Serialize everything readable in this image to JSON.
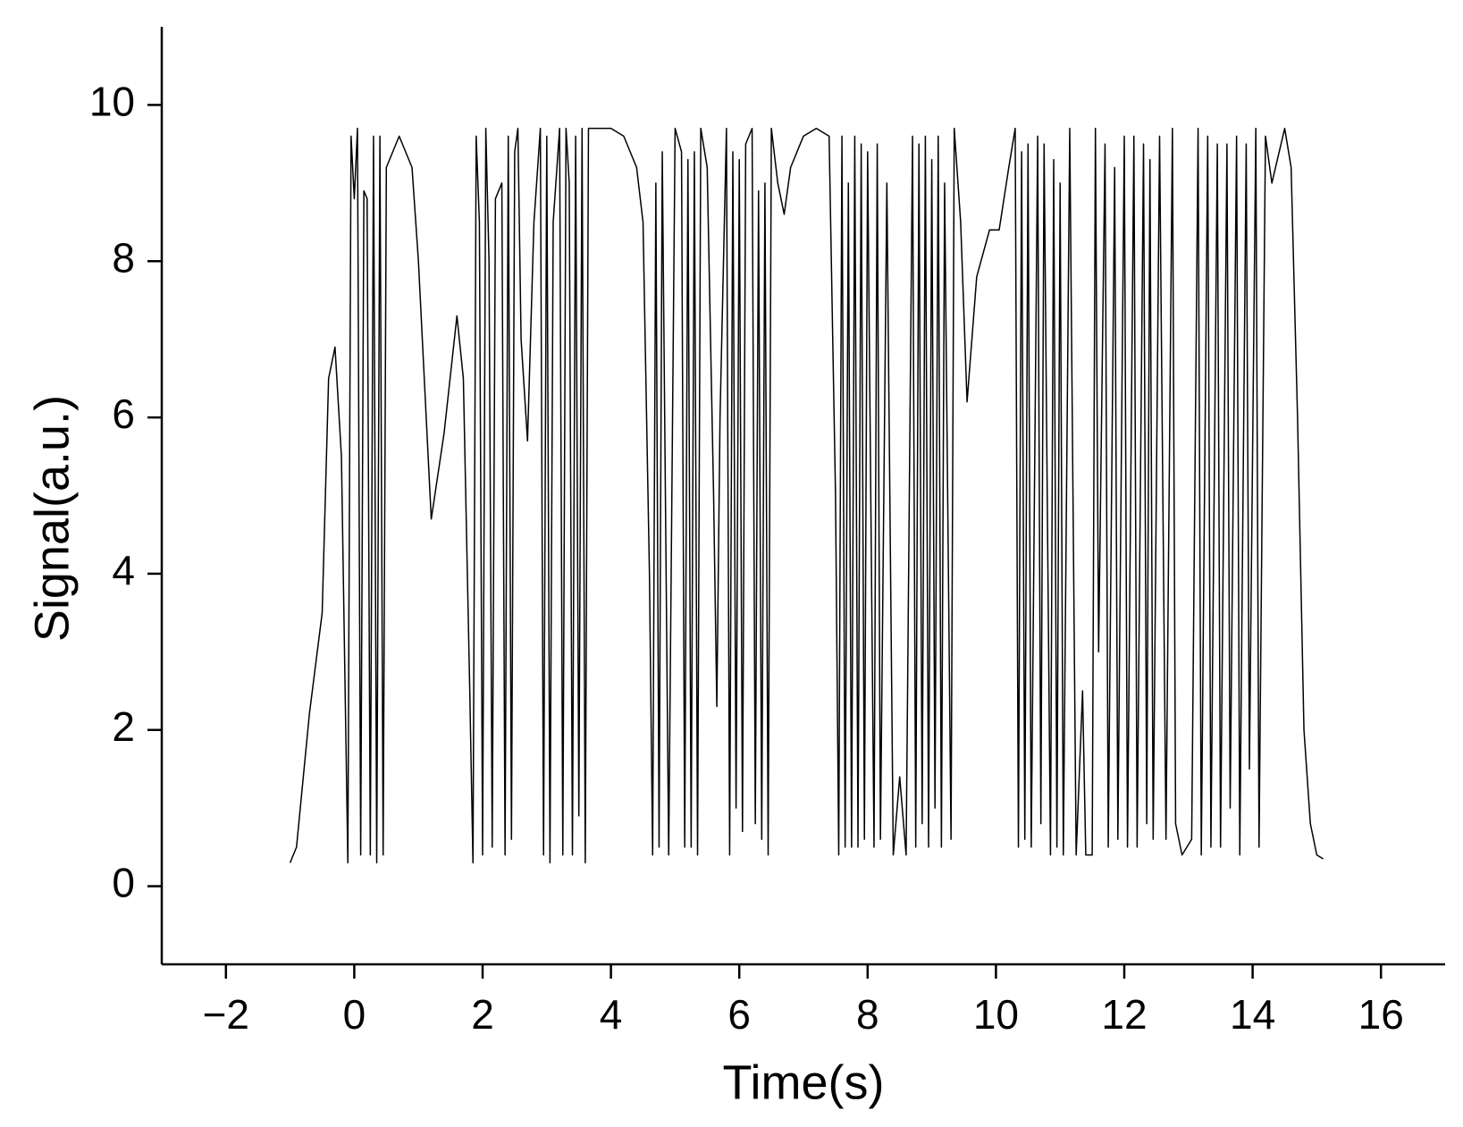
{
  "chart_data": {
    "type": "line",
    "xlabel": "Time(s)",
    "ylabel": "Signal(a.u.)",
    "color": "#000000",
    "xlim": [
      -3,
      17
    ],
    "ylim": [
      -1,
      11
    ],
    "xticks": [
      {
        "value": -2,
        "label": "−2"
      },
      0,
      2,
      4,
      6,
      8,
      10,
      12,
      14,
      16
    ],
    "yticks": [
      0,
      2,
      4,
      6,
      8,
      10
    ],
    "x": [
      -1.0,
      -0.9,
      -0.7,
      -0.5,
      -0.4,
      -0.3,
      -0.2,
      -0.1,
      -0.05,
      0.0,
      0.05,
      0.1,
      0.15,
      0.2,
      0.25,
      0.3,
      0.35,
      0.4,
      0.45,
      0.5,
      0.7,
      0.9,
      1.0,
      1.2,
      1.4,
      1.6,
      1.7,
      1.8,
      1.85,
      1.9,
      1.95,
      2.0,
      2.05,
      2.1,
      2.15,
      2.2,
      2.3,
      2.35,
      2.4,
      2.45,
      2.5,
      2.55,
      2.6,
      2.7,
      2.8,
      2.9,
      2.95,
      3.0,
      3.05,
      3.1,
      3.2,
      3.25,
      3.3,
      3.35,
      3.4,
      3.45,
      3.5,
      3.55,
      3.6,
      3.65,
      3.8,
      4.0,
      4.2,
      4.4,
      4.5,
      4.6,
      4.65,
      4.7,
      4.75,
      4.8,
      4.9,
      5.0,
      5.1,
      5.15,
      5.2,
      5.25,
      5.3,
      5.35,
      5.4,
      5.5,
      5.6,
      5.65,
      5.7,
      5.8,
      5.85,
      5.9,
      5.95,
      6.0,
      6.05,
      6.1,
      6.2,
      6.25,
      6.3,
      6.35,
      6.4,
      6.45,
      6.5,
      6.6,
      6.7,
      6.8,
      7.0,
      7.2,
      7.4,
      7.5,
      7.55,
      7.6,
      7.65,
      7.7,
      7.75,
      7.8,
      7.85,
      7.9,
      7.95,
      8.0,
      8.1,
      8.15,
      8.2,
      8.3,
      8.4,
      8.5,
      8.6,
      8.7,
      8.75,
      8.8,
      8.85,
      8.9,
      8.95,
      9.0,
      9.05,
      9.1,
      9.15,
      9.2,
      9.3,
      9.35,
      9.45,
      9.55,
      9.7,
      9.9,
      10.05,
      10.2,
      10.3,
      10.35,
      10.4,
      10.45,
      10.5,
      10.55,
      10.65,
      10.7,
      10.75,
      10.85,
      10.9,
      10.95,
      11.0,
      11.05,
      11.15,
      11.25,
      11.35,
      11.4,
      11.5,
      11.55,
      11.6,
      11.7,
      11.75,
      11.85,
      11.9,
      12.0,
      12.05,
      12.15,
      12.2,
      12.3,
      12.35,
      12.4,
      12.45,
      12.55,
      12.65,
      12.75,
      12.8,
      12.9,
      13.05,
      13.15,
      13.2,
      13.3,
      13.35,
      13.45,
      13.5,
      13.6,
      13.65,
      13.75,
      13.8,
      13.9,
      13.95,
      14.05,
      14.1,
      14.2,
      14.3,
      14.5,
      14.6,
      14.7,
      14.8,
      14.9,
      15.0,
      15.1
    ],
    "values": [
      0.3,
      0.5,
      2.2,
      3.5,
      6.5,
      6.9,
      5.5,
      0.3,
      9.6,
      8.8,
      9.7,
      0.4,
      8.9,
      8.8,
      0.4,
      9.6,
      0.3,
      9.6,
      0.4,
      9.2,
      9.6,
      9.2,
      8.0,
      4.7,
      5.8,
      7.3,
      6.5,
      2.5,
      0.3,
      9.6,
      8.5,
      0.4,
      9.7,
      8.0,
      0.5,
      8.8,
      9.0,
      0.4,
      9.6,
      0.6,
      9.4,
      9.7,
      7.0,
      5.7,
      8.5,
      9.7,
      0.4,
      9.6,
      0.3,
      8.5,
      9.7,
      0.4,
      9.7,
      9.0,
      0.4,
      9.6,
      0.9,
      9.7,
      0.3,
      9.7,
      9.7,
      9.7,
      9.6,
      9.2,
      8.5,
      4.0,
      0.4,
      9.0,
      0.5,
      9.4,
      0.4,
      9.7,
      9.4,
      0.5,
      9.3,
      0.5,
      9.4,
      0.4,
      9.7,
      9.2,
      5.0,
      2.3,
      6.0,
      9.7,
      0.4,
      9.4,
      1.0,
      9.3,
      0.7,
      9.5,
      9.7,
      0.8,
      8.9,
      0.6,
      9.0,
      0.4,
      9.7,
      9.0,
      8.6,
      9.2,
      9.6,
      9.7,
      9.6,
      5.0,
      0.4,
      9.6,
      0.5,
      9.0,
      0.5,
      9.6,
      0.5,
      9.5,
      0.6,
      9.4,
      0.5,
      9.5,
      0.6,
      9.0,
      0.4,
      1.4,
      0.4,
      9.6,
      0.5,
      9.5,
      0.8,
      9.6,
      0.5,
      9.3,
      1.0,
      9.6,
      0.5,
      9.0,
      0.6,
      9.7,
      8.5,
      6.2,
      7.8,
      8.4,
      8.4,
      9.2,
      9.7,
      0.5,
      9.4,
      0.6,
      9.5,
      0.5,
      9.6,
      0.8,
      9.5,
      0.4,
      9.3,
      0.5,
      9.0,
      0.4,
      9.7,
      0.4,
      2.5,
      0.4,
      0.4,
      9.7,
      3.0,
      9.5,
      0.5,
      9.2,
      0.6,
      9.6,
      0.5,
      9.6,
      0.5,
      9.5,
      0.8,
      9.3,
      0.6,
      9.6,
      0.6,
      9.7,
      0.8,
      0.4,
      0.6,
      9.7,
      0.4,
      9.6,
      0.5,
      9.5,
      0.5,
      9.5,
      1.0,
      9.6,
      0.4,
      9.5,
      1.5,
      9.7,
      0.5,
      9.6,
      9.0,
      9.7,
      9.2,
      6.0,
      2.0,
      0.8,
      0.4,
      0.35
    ]
  }
}
